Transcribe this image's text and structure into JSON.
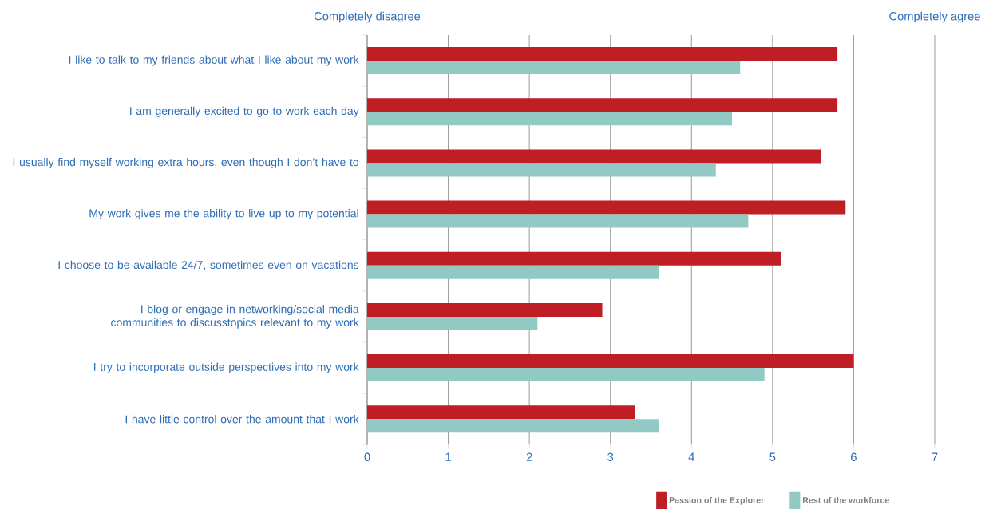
{
  "chart_data": {
    "type": "bar",
    "orientation": "horizontal",
    "categories": [
      "I like to talk to my friends about what I like about my work",
      "I am generally excited to go to work each day",
      "I usually find myself working extra hours, even though I don’t have to",
      "My work gives me the ability to live up to my potential",
      "I choose to be available 24/7, sometimes even on vacations",
      "I blog or engage in networking/social media communities to discusstopics relevant to my work",
      "I try to incorporate outside perspectives into my work",
      "I have little control over the amount that I work"
    ],
    "series": [
      {
        "name": "Passion of the Explorer",
        "color": "#be1e24",
        "values": [
          5.8,
          5.8,
          5.6,
          5.9,
          5.1,
          2.9,
          6.0,
          3.3
        ]
      },
      {
        "name": "Rest of the workforce",
        "color": "#92c9c5",
        "values": [
          4.6,
          4.5,
          4.3,
          4.7,
          3.6,
          2.1,
          4.9,
          3.6
        ]
      }
    ],
    "xlim": [
      0,
      7
    ],
    "xticks": [
      0,
      1,
      2,
      3,
      4,
      5,
      6,
      7
    ],
    "grid": "x",
    "legend": "bottom right",
    "annotations": [
      "Completely disagree",
      "Completely agree"
    ]
  }
}
